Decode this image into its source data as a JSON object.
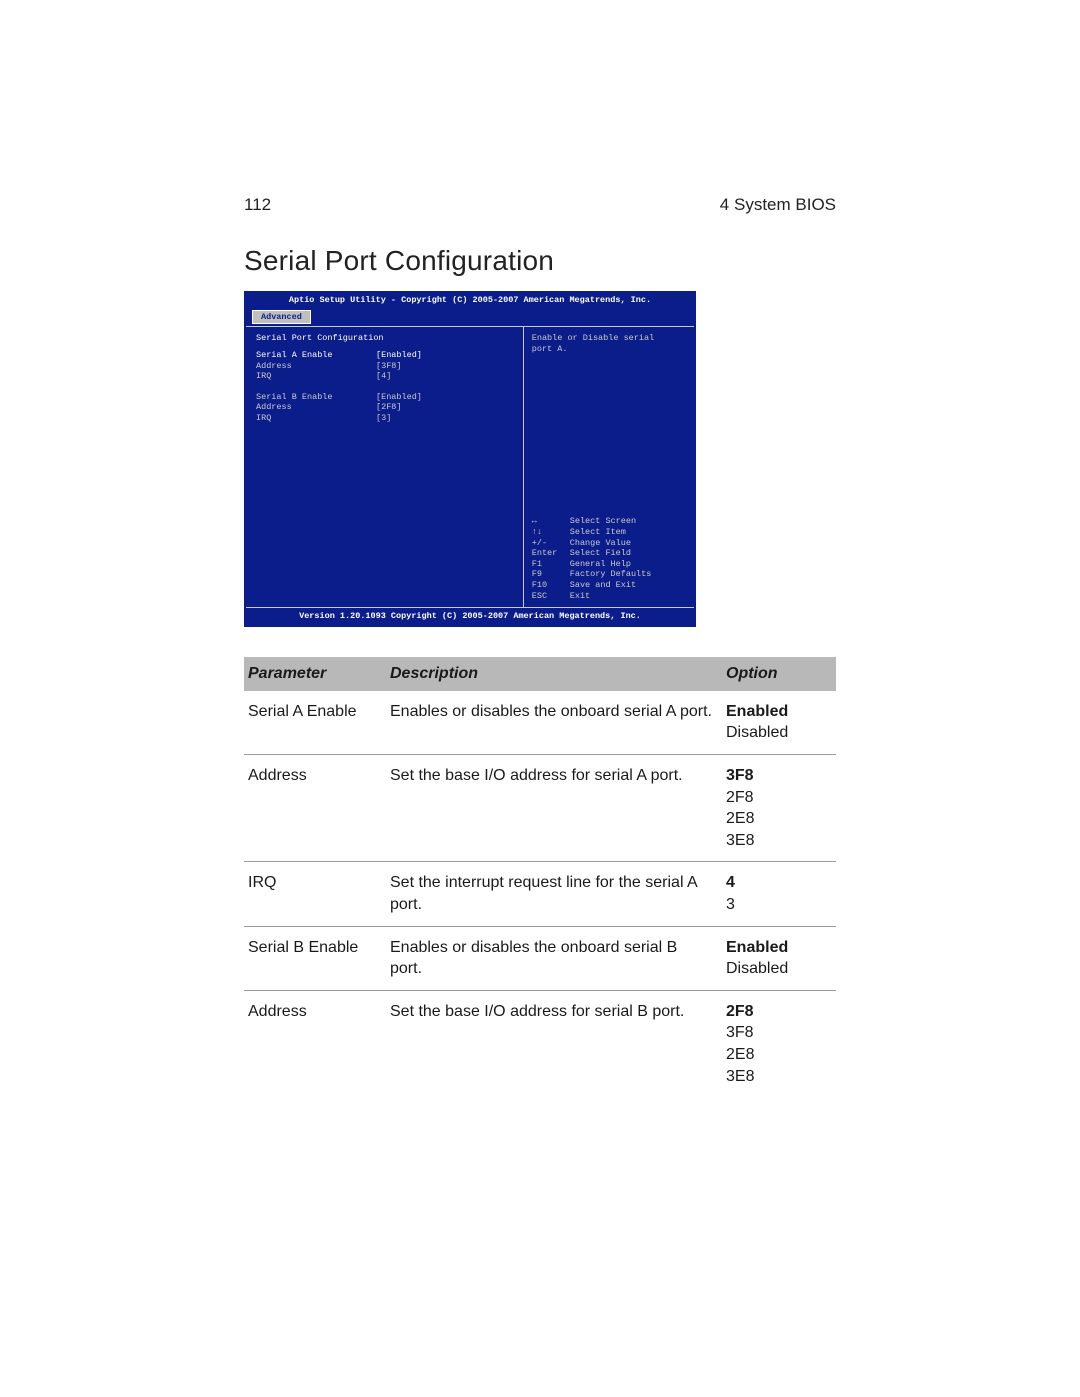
{
  "header": {
    "page_number": "112",
    "chapter_label": "4 System BIOS"
  },
  "section": {
    "title": "Serial Port Configuration"
  },
  "bios": {
    "title_bar": "Aptio Setup Utility - Copyright (C) 2005-2007 American Megatrends, Inc.",
    "tab_label": "Advanced",
    "screen_title": "Serial Port Configuration",
    "items": [
      {
        "label": "Serial A Enable",
        "value": "[Enabled]"
      },
      {
        "label": "Address",
        "value": "[3F8]"
      },
      {
        "label": "IRQ",
        "value": "[4]"
      }
    ],
    "items2": [
      {
        "label": "Serial B Enable",
        "value": "[Enabled]"
      },
      {
        "label": "Address",
        "value": "[2F8]"
      },
      {
        "label": "IRQ",
        "value": "[3]"
      }
    ],
    "help_text_line1": "Enable or Disable serial",
    "help_text_line2": "port A.",
    "hotkeys": [
      {
        "key": "↔",
        "action": "Select Screen"
      },
      {
        "key": "↑↓",
        "action": "Select Item"
      },
      {
        "key": "+/-",
        "action": "Change Value"
      },
      {
        "key": "Enter",
        "action": "Select Field"
      },
      {
        "key": "F1",
        "action": "General Help"
      },
      {
        "key": "F9",
        "action": "Factory Defaults"
      },
      {
        "key": "F10",
        "action": "Save and Exit"
      },
      {
        "key": "ESC",
        "action": "Exit"
      }
    ],
    "footer": "Version 1.20.1093 Copyright (C) 2005-2007 American Megatrends, Inc."
  },
  "table": {
    "headers": {
      "parameter": "Parameter",
      "description": "Description",
      "option": "Option"
    },
    "rows": [
      {
        "parameter": "Serial A Enable",
        "description": "Enables or disables the onboard serial A port.",
        "options": [
          {
            "text": "Enabled",
            "bold": true
          },
          {
            "text": "Disabled",
            "bold": false
          }
        ]
      },
      {
        "parameter": "Address",
        "description": "Set the base I/O address for serial A port.",
        "options": [
          {
            "text": "3F8",
            "bold": true
          },
          {
            "text": "2F8",
            "bold": false
          },
          {
            "text": "2E8",
            "bold": false
          },
          {
            "text": "3E8",
            "bold": false
          }
        ]
      },
      {
        "parameter": "IRQ",
        "description": "Set the interrupt request line for the serial A port.",
        "options": [
          {
            "text": "4",
            "bold": true
          },
          {
            "text": "3",
            "bold": false
          }
        ]
      },
      {
        "parameter": "Serial B Enable",
        "description": "Enables or disables the onboard serial B port.",
        "options": [
          {
            "text": "Enabled",
            "bold": true
          },
          {
            "text": "Disabled",
            "bold": false
          }
        ]
      },
      {
        "parameter": "Address",
        "description": "Set the base I/O address for serial B port.",
        "options": [
          {
            "text": "2F8",
            "bold": true
          },
          {
            "text": "3F8",
            "bold": false
          },
          {
            "text": "2E8",
            "bold": false
          },
          {
            "text": "3E8",
            "bold": false
          }
        ]
      }
    ]
  }
}
